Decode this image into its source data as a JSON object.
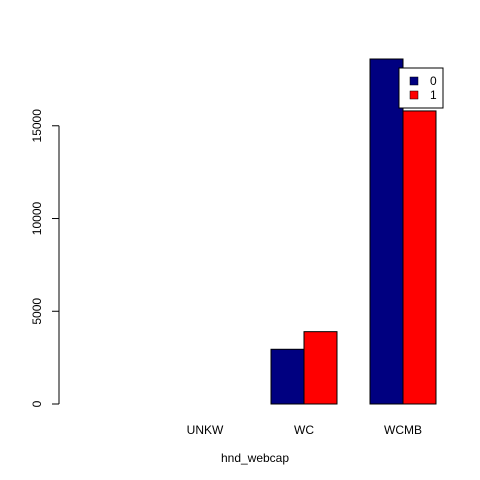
{
  "chart_data": {
    "type": "bar",
    "barmode": "grouped",
    "xlabel": "hnd_webcap",
    "ylabel": "",
    "categories": [
      "",
      "UNKW",
      "WC",
      "WCMB"
    ],
    "series": [
      {
        "name": "0",
        "color": "#000080",
        "values": [
          0,
          0,
          2950,
          18600
        ]
      },
      {
        "name": "1",
        "color": "#ff0000",
        "values": [
          0,
          0,
          3900,
          15800
        ]
      }
    ],
    "ylim": [
      0,
      18600
    ],
    "yticks": [
      "0",
      "5000",
      "10000",
      "15000"
    ],
    "grid": false,
    "legend": {
      "placement": "top-right",
      "entries": [
        "0",
        "1"
      ]
    }
  }
}
